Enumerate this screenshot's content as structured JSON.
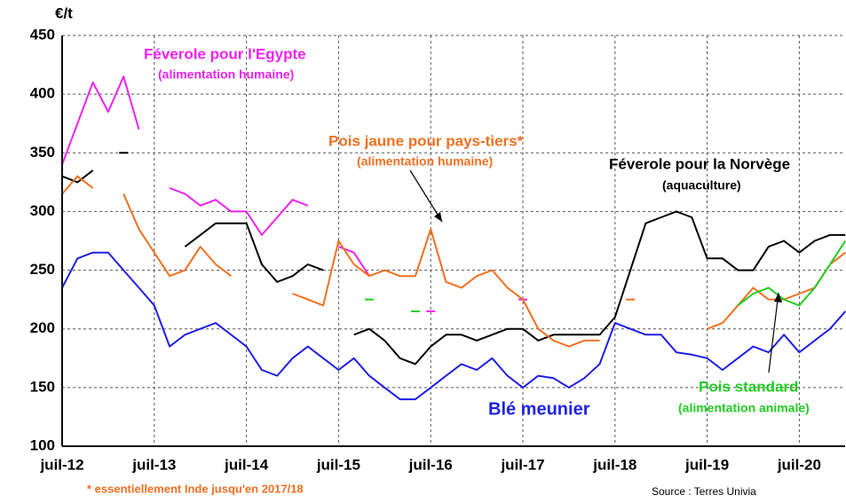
{
  "chart_data": {
    "type": "line",
    "y_label": "€/t",
    "categories": [
      "juil-12",
      null,
      null,
      null,
      null,
      null,
      "juil-13",
      null,
      null,
      null,
      null,
      null,
      "juil-14",
      null,
      null,
      null,
      null,
      null,
      "juil-15",
      null,
      null,
      null,
      null,
      null,
      "juil-16",
      null,
      null,
      null,
      null,
      null,
      "juil-17",
      null,
      null,
      null,
      null,
      null,
      "juil-18",
      null,
      null,
      null,
      null,
      null,
      "juil-19",
      null,
      null,
      null,
      null,
      null,
      "juil-20",
      null,
      null,
      null
    ],
    "ylim": [
      100,
      450
    ],
    "yticks": [
      100,
      150,
      200,
      250,
      300,
      350,
      400,
      450
    ],
    "grid": true,
    "series": [
      {
        "name": "Blé meunier",
        "color": "#1f1fe6",
        "values": [
          235,
          260,
          265,
          265,
          250,
          235,
          220,
          185,
          195,
          200,
          205,
          195,
          185,
          165,
          160,
          175,
          185,
          175,
          165,
          175,
          160,
          150,
          140,
          140,
          150,
          160,
          170,
          165,
          175,
          160,
          150,
          160,
          158,
          150,
          158,
          170,
          205,
          200,
          195,
          195,
          180,
          178,
          175,
          165,
          175,
          185,
          180,
          195,
          180,
          190,
          200,
          215
        ]
      },
      {
        "name": "Féverole pour la Norvège",
        "color": "#000000",
        "values": [
          330,
          325,
          335,
          null,
          350,
          null,
          null,
          null,
          270,
          280,
          290,
          290,
          290,
          255,
          240,
          245,
          255,
          250,
          null,
          195,
          200,
          190,
          175,
          170,
          185,
          195,
          195,
          190,
          195,
          200,
          200,
          190,
          195,
          195,
          195,
          195,
          210,
          250,
          290,
          295,
          300,
          295,
          260,
          260,
          250,
          250,
          270,
          275,
          265,
          275,
          280,
          280
        ]
      },
      {
        "name": "Féverole pour l'Egypte",
        "color": "#ee22ee",
        "values": [
          340,
          375,
          410,
          385,
          415,
          370,
          null,
          320,
          315,
          305,
          310,
          300,
          300,
          280,
          295,
          310,
          305,
          null,
          270,
          265,
          245,
          null,
          null,
          null,
          215,
          null,
          null,
          null,
          null,
          null,
          225,
          null,
          null,
          null,
          null,
          null,
          null,
          null,
          null,
          null,
          null,
          null,
          null,
          null,
          null,
          null,
          null,
          null,
          null,
          null,
          null,
          null
        ]
      },
      {
        "name": "Pois jaune pour pays-tiers*",
        "color": "#f07020",
        "values": [
          315,
          330,
          320,
          null,
          315,
          285,
          265,
          245,
          250,
          270,
          255,
          245,
          null,
          null,
          null,
          230,
          225,
          220,
          275,
          255,
          245,
          250,
          245,
          245,
          285,
          240,
          235,
          245,
          250,
          235,
          225,
          200,
          190,
          185,
          190,
          190,
          null,
          225,
          null,
          null,
          null,
          null,
          200,
          205,
          220,
          235,
          225,
          225,
          230,
          235,
          255,
          265
        ]
      },
      {
        "name": "Pois standard",
        "color": "#22cc22",
        "values": [
          null,
          null,
          null,
          null,
          null,
          null,
          null,
          null,
          null,
          null,
          null,
          null,
          null,
          null,
          null,
          null,
          null,
          null,
          null,
          null,
          225,
          null,
          null,
          215,
          null,
          null,
          null,
          null,
          null,
          null,
          null,
          null,
          null,
          null,
          null,
          null,
          null,
          null,
          null,
          null,
          null,
          null,
          null,
          null,
          220,
          230,
          235,
          225,
          220,
          235,
          255,
          275
        ]
      }
    ],
    "annotations": [
      "Féverole pour l'Egypte",
      "(alimentation humaine)",
      "Pois jaune pour pays-tiers*",
      "(alimentation humaine)",
      "Féverole pour la Norvège",
      "(aquaculture)",
      "Blé meunier",
      "Pois standard",
      "(alimentation animale)"
    ],
    "footnote": "* essentiellement Inde jusqu'en 2017/18",
    "source": "Source : Terres Univia"
  }
}
